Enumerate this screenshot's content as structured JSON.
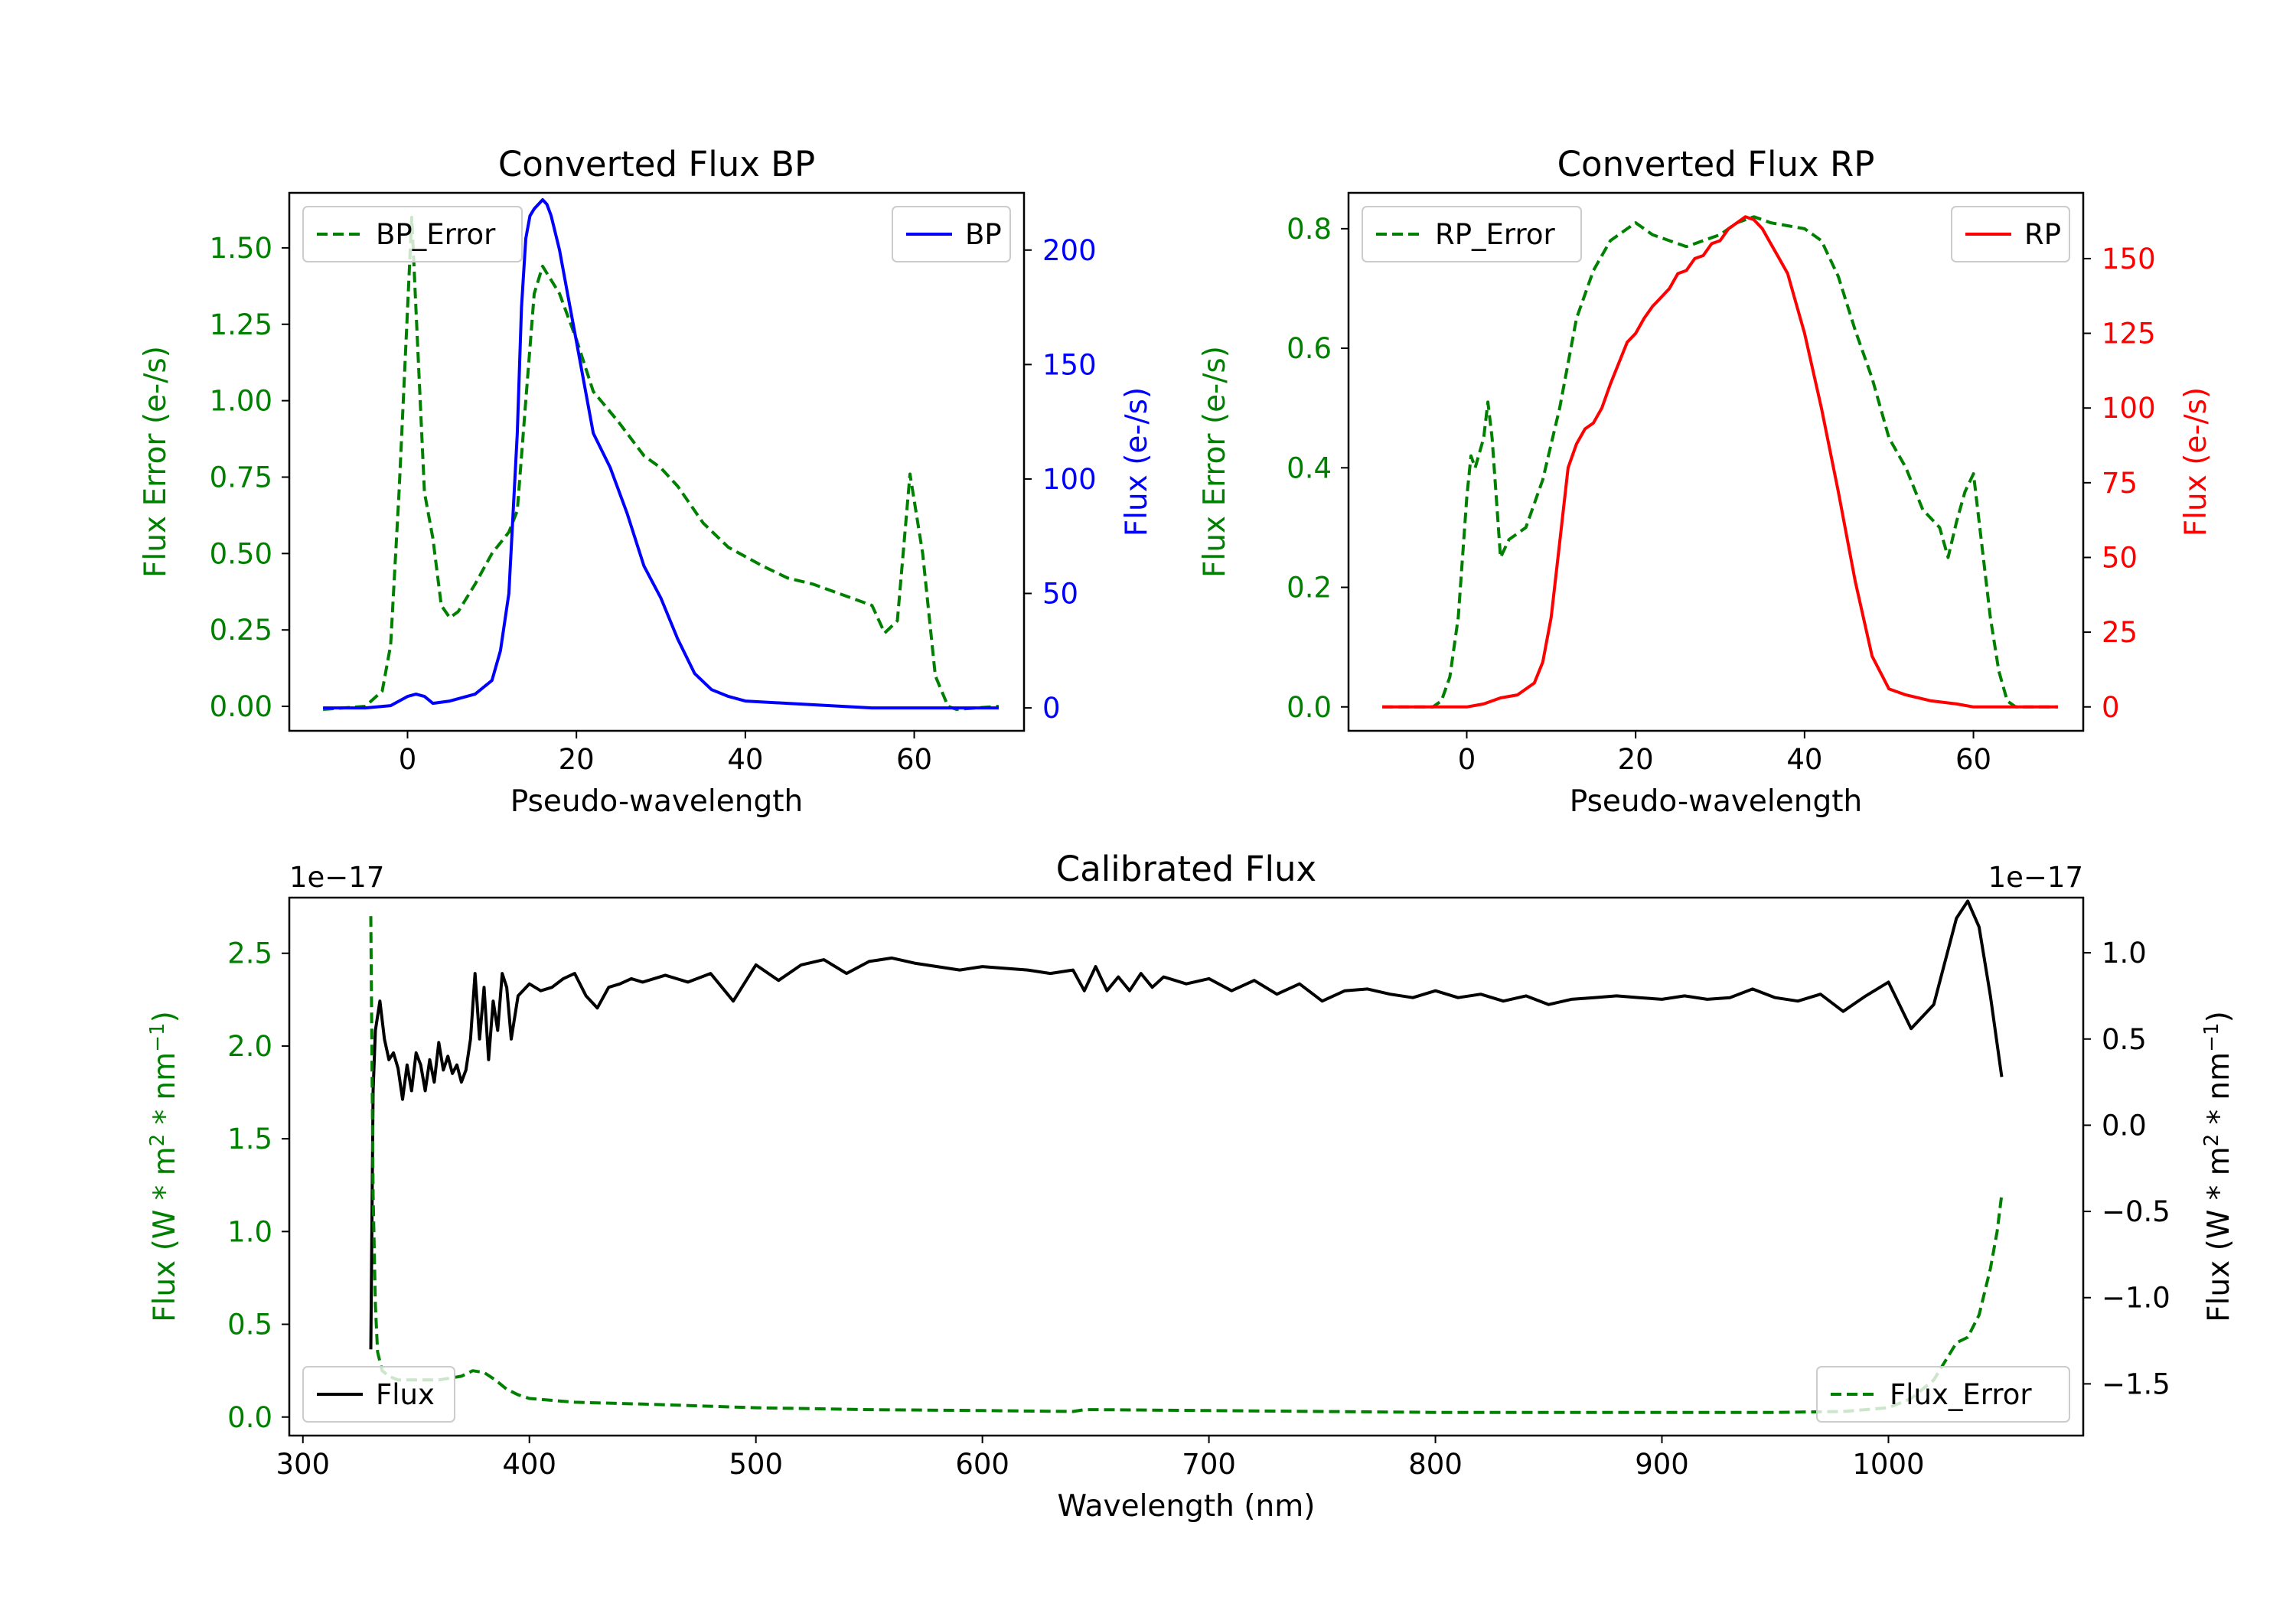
{
  "colors": {
    "green": "#008000",
    "blue": "#0000ff",
    "red": "#ff0000",
    "black": "#000000"
  },
  "chart_data": [
    {
      "id": "bp",
      "type": "line",
      "title": "Converted Flux BP",
      "xlabel": "Pseudo-wavelength",
      "ylabel_left": "Flux Error (e-/s)",
      "ylabel_right": "Flux (e-/s)",
      "xlim": [
        -14,
        73
      ],
      "ylim_left": [
        -0.08,
        1.68
      ],
      "ylim_right": [
        -10,
        225
      ],
      "xticks": [
        0,
        20,
        40,
        60
      ],
      "xtick_labels": [
        "0",
        "20",
        "40",
        "60"
      ],
      "yticks_left": [
        0,
        0.25,
        0.5,
        0.75,
        1.0,
        1.25,
        1.5
      ],
      "ytick_labels_left": [
        "0.00",
        "0.25",
        "0.50",
        "0.75",
        "1.00",
        "1.25",
        "1.50"
      ],
      "yticks_right": [
        0,
        50,
        100,
        150,
        200
      ],
      "ytick_labels_right": [
        "0",
        "50",
        "100",
        "150",
        "200"
      ],
      "legend_left": {
        "label": "BP_Error",
        "position": "top-left"
      },
      "legend_right": {
        "label": "BP",
        "position": "top-right"
      },
      "series": [
        {
          "name": "BP_Error",
          "axis": "left",
          "style": "dashed",
          "color": "#008000",
          "x": [
            -10,
            -5,
            -3,
            -2,
            -1,
            0,
            0.5,
            1,
            2,
            3,
            4,
            5,
            6,
            8,
            10,
            12,
            13,
            14,
            15,
            16,
            18,
            20,
            22,
            25,
            28,
            30,
            32,
            35,
            38,
            42,
            45,
            48,
            50,
            55,
            56.5,
            58,
            59.5,
            61,
            62.5,
            64,
            65,
            70
          ],
          "y": [
            -0.01,
            0.0,
            0.05,
            0.2,
            0.7,
            1.3,
            1.6,
            1.3,
            0.7,
            0.55,
            0.33,
            0.29,
            0.31,
            0.4,
            0.5,
            0.57,
            0.64,
            1.0,
            1.35,
            1.44,
            1.35,
            1.2,
            1.03,
            0.93,
            0.82,
            0.78,
            0.72,
            0.6,
            0.52,
            0.46,
            0.42,
            0.4,
            0.38,
            0.33,
            0.24,
            0.28,
            0.76,
            0.5,
            0.1,
            0.0,
            -0.01,
            0.0
          ]
        },
        {
          "name": "BP",
          "axis": "right",
          "style": "solid",
          "color": "#0000ff",
          "x": [
            -10,
            -5,
            -2,
            0,
            1,
            2,
            3,
            5,
            8,
            10,
            11,
            12,
            13,
            13.5,
            14,
            14.5,
            15,
            15.5,
            16,
            16.5,
            17,
            18,
            19,
            20,
            22,
            24,
            26,
            28,
            30,
            32,
            34,
            36,
            38,
            40,
            45,
            50,
            55,
            60,
            65,
            70
          ],
          "y": [
            0,
            0,
            1,
            5,
            6,
            5,
            2,
            3,
            6,
            12,
            25,
            50,
            120,
            175,
            205,
            215,
            218,
            220,
            222,
            220,
            215,
            200,
            180,
            160,
            120,
            105,
            85,
            62,
            48,
            30,
            15,
            8,
            5,
            3,
            2,
            1,
            0,
            0,
            0,
            0
          ]
        }
      ]
    },
    {
      "id": "rp",
      "type": "line",
      "title": "Converted Flux RP",
      "xlabel": "Pseudo-wavelength",
      "ylabel_left": "Flux Error (e-/s)",
      "ylabel_right": "Flux (e-/s)",
      "xlim": [
        -14,
        73
      ],
      "ylim_left": [
        -0.04,
        0.86
      ],
      "ylim_right": [
        -8,
        172
      ],
      "xticks": [
        0,
        20,
        40,
        60
      ],
      "xtick_labels": [
        "0",
        "20",
        "40",
        "60"
      ],
      "yticks_left": [
        0,
        0.2,
        0.4,
        0.6,
        0.8
      ],
      "ytick_labels_left": [
        "0.0",
        "0.2",
        "0.4",
        "0.6",
        "0.8"
      ],
      "yticks_right": [
        0,
        25,
        50,
        75,
        100,
        125,
        150
      ],
      "ytick_labels_right": [
        "0",
        "25",
        "50",
        "75",
        "100",
        "125",
        "150"
      ],
      "legend_left": {
        "label": "RP_Error",
        "position": "top-left"
      },
      "legend_right": {
        "label": "RP",
        "position": "top-right"
      },
      "series": [
        {
          "name": "RP_Error",
          "axis": "left",
          "style": "dashed",
          "color": "#008000",
          "x": [
            -10,
            -4,
            -3,
            -2,
            -1,
            0,
            0.5,
            1,
            2,
            2.5,
            3,
            4,
            5,
            7,
            9,
            11,
            13,
            15,
            17,
            19,
            20,
            21,
            22,
            24,
            26,
            28,
            30,
            32,
            34,
            36,
            38,
            40,
            42,
            44,
            46,
            48,
            50,
            52,
            54,
            56,
            57,
            58,
            59,
            60,
            62,
            63,
            64,
            65,
            70
          ],
          "y": [
            0,
            0,
            0.01,
            0.05,
            0.15,
            0.35,
            0.42,
            0.4,
            0.45,
            0.51,
            0.45,
            0.25,
            0.28,
            0.3,
            0.38,
            0.5,
            0.65,
            0.73,
            0.78,
            0.8,
            0.81,
            0.8,
            0.79,
            0.78,
            0.77,
            0.78,
            0.79,
            0.81,
            0.82,
            0.81,
            0.805,
            0.8,
            0.78,
            0.72,
            0.63,
            0.55,
            0.45,
            0.4,
            0.33,
            0.3,
            0.25,
            0.31,
            0.36,
            0.39,
            0.15,
            0.06,
            0.01,
            0.0,
            0
          ]
        },
        {
          "name": "RP",
          "axis": "right",
          "style": "solid",
          "color": "#ff0000",
          "x": [
            -10,
            -5,
            -2,
            0,
            2,
            4,
            6,
            8,
            9,
            10,
            11,
            12,
            13,
            14,
            15,
            16,
            17,
            18,
            19,
            20,
            21,
            22,
            23,
            24,
            25,
            26,
            27,
            28,
            29,
            30,
            31,
            32,
            33,
            34,
            35,
            36,
            37,
            38,
            39,
            40,
            42,
            44,
            46,
            48,
            50,
            52,
            55,
            58,
            60,
            65,
            70
          ],
          "y": [
            0,
            0,
            0,
            0,
            1,
            3,
            4,
            8,
            15,
            30,
            55,
            80,
            88,
            93,
            95,
            100,
            108,
            115,
            122,
            125,
            130,
            134,
            137,
            140,
            145,
            146,
            150,
            151,
            155,
            156,
            160,
            162,
            164,
            163,
            160,
            155,
            150,
            145,
            135,
            125,
            100,
            72,
            42,
            17,
            6,
            4,
            2,
            1,
            0,
            0,
            0
          ]
        }
      ]
    },
    {
      "id": "calibrated",
      "type": "line",
      "title": "Calibrated Flux",
      "xlabel": "Wavelength (nm)",
      "ylabel_left": "Flux (W * m^2 * nm^-1)",
      "ylabel_right": "Flux (W * m^2 * nm^-1)",
      "offset_left": "1e−17",
      "offset_right": "1e−17",
      "xlim": [
        294,
        1086
      ],
      "ylim_left": [
        -0.1,
        2.8
      ],
      "ylim_right": [
        -1.8,
        1.32
      ],
      "xticks": [
        300,
        400,
        500,
        600,
        700,
        800,
        900,
        1000
      ],
      "xtick_labels": [
        "300",
        "400",
        "500",
        "600",
        "700",
        "800",
        "900",
        "1000"
      ],
      "yticks_left": [
        0,
        0.5,
        1.0,
        1.5,
        2.0,
        2.5
      ],
      "ytick_labels_left": [
        "0.0",
        "0.5",
        "1.0",
        "1.5",
        "2.0",
        "2.5"
      ],
      "yticks_right": [
        -1.5,
        -1.0,
        -0.5,
        0.0,
        0.5,
        1.0
      ],
      "ytick_labels_right": [
        "−1.5",
        "−1.0",
        "−0.5",
        "0.0",
        "0.5",
        "1.0"
      ],
      "legend_left": {
        "label": "Flux",
        "position": "lower-left"
      },
      "legend_right": {
        "label": "Flux_Error",
        "position": "lower-right"
      },
      "series": [
        {
          "name": "Flux",
          "axis": "right",
          "style": "solid",
          "color": "#000000",
          "x": [
            330,
            331,
            332,
            334,
            336,
            338,
            340,
            342,
            344,
            346,
            348,
            350,
            352,
            354,
            356,
            358,
            360,
            362,
            364,
            366,
            368,
            370,
            372,
            374,
            376,
            378,
            380,
            382,
            384,
            386,
            388,
            390,
            392,
            395,
            400,
            405,
            410,
            415,
            420,
            425,
            430,
            435,
            440,
            445,
            450,
            460,
            470,
            480,
            490,
            500,
            510,
            520,
            530,
            540,
            550,
            560,
            570,
            580,
            590,
            600,
            610,
            620,
            630,
            640,
            645,
            650,
            655,
            660,
            665,
            670,
            675,
            680,
            690,
            700,
            710,
            720,
            730,
            740,
            750,
            760,
            770,
            780,
            790,
            800,
            810,
            820,
            830,
            840,
            850,
            860,
            870,
            880,
            890,
            900,
            910,
            920,
            930,
            940,
            950,
            960,
            970,
            980,
            990,
            1000,
            1010,
            1020,
            1030,
            1035,
            1040,
            1045,
            1050
          ],
          "y": [
            -1.3,
            0.2,
            0.55,
            0.72,
            0.5,
            0.38,
            0.42,
            0.33,
            0.15,
            0.35,
            0.2,
            0.42,
            0.35,
            0.2,
            0.38,
            0.25,
            0.48,
            0.32,
            0.4,
            0.3,
            0.35,
            0.25,
            0.32,
            0.5,
            0.88,
            0.5,
            0.8,
            0.38,
            0.72,
            0.55,
            0.88,
            0.8,
            0.5,
            0.75,
            0.82,
            0.78,
            0.8,
            0.85,
            0.88,
            0.75,
            0.68,
            0.8,
            0.82,
            0.85,
            0.83,
            0.87,
            0.83,
            0.88,
            0.72,
            0.93,
            0.84,
            0.93,
            0.96,
            0.88,
            0.95,
            0.97,
            0.94,
            0.92,
            0.9,
            0.92,
            0.91,
            0.9,
            0.88,
            0.9,
            0.78,
            0.92,
            0.78,
            0.86,
            0.78,
            0.88,
            0.8,
            0.86,
            0.82,
            0.85,
            0.78,
            0.84,
            0.76,
            0.82,
            0.72,
            0.78,
            0.79,
            0.76,
            0.74,
            0.78,
            0.74,
            0.76,
            0.72,
            0.75,
            0.7,
            0.73,
            0.74,
            0.75,
            0.74,
            0.73,
            0.75,
            0.73,
            0.74,
            0.79,
            0.74,
            0.72,
            0.76,
            0.66,
            0.75,
            0.83,
            0.56,
            0.7,
            1.2,
            1.3,
            1.15,
            0.75,
            0.28
          ]
        },
        {
          "name": "Flux_Error",
          "axis": "left",
          "style": "dashed",
          "color": "#008000",
          "x": [
            330,
            331,
            332,
            333,
            335,
            338,
            342,
            350,
            360,
            370,
            375,
            380,
            385,
            390,
            395,
            400,
            420,
            450,
            500,
            550,
            600,
            640,
            645,
            650,
            700,
            750,
            800,
            850,
            900,
            950,
            980,
            1000,
            1010,
            1020,
            1025,
            1030,
            1035,
            1040,
            1045,
            1048,
            1050
          ],
          "y": [
            2.7,
            1.2,
            0.6,
            0.35,
            0.25,
            0.22,
            0.2,
            0.2,
            0.2,
            0.22,
            0.25,
            0.24,
            0.2,
            0.15,
            0.12,
            0.1,
            0.08,
            0.07,
            0.05,
            0.04,
            0.035,
            0.03,
            0.04,
            0.04,
            0.035,
            0.03,
            0.025,
            0.025,
            0.025,
            0.025,
            0.03,
            0.05,
            0.1,
            0.2,
            0.3,
            0.4,
            0.43,
            0.55,
            0.8,
            1.0,
            1.2
          ]
        }
      ]
    }
  ]
}
